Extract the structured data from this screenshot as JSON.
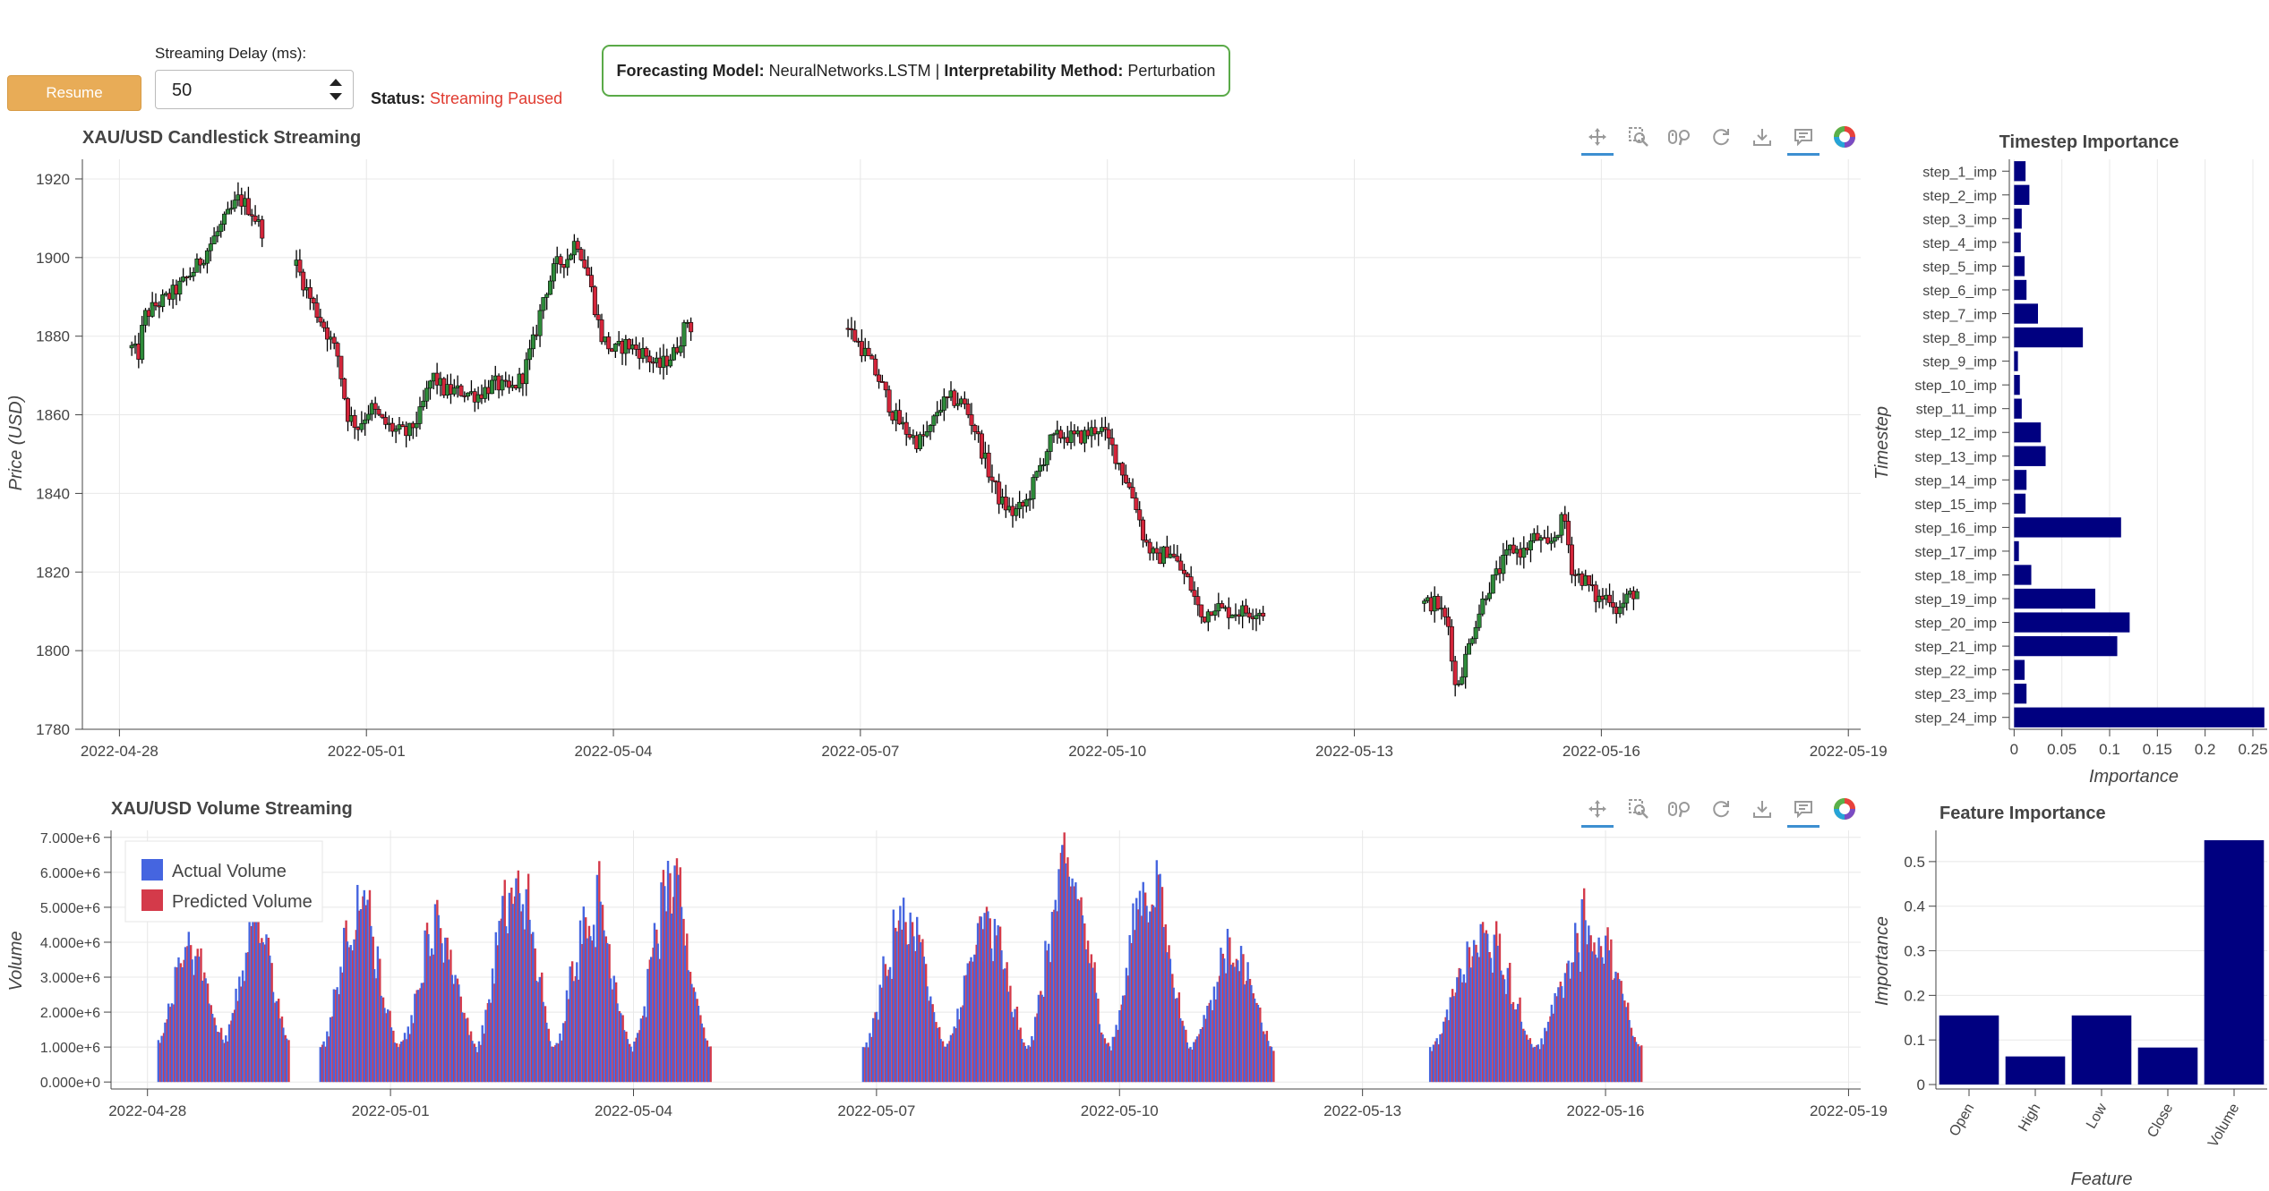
{
  "controls": {
    "resume_label": "Resume",
    "delay_label": "Streaming Delay (ms):",
    "delay_value": "50",
    "status_label": "Status:",
    "status_value": "Streaming Paused",
    "model_label": "Forecasting Model:",
    "model_value": "NeuralNetworks.LSTM",
    "separator": "|",
    "method_label": "Interpretability Method:",
    "method_value": "Perturbation"
  },
  "toolbar": {
    "tools": [
      "pan-icon",
      "box-zoom-icon",
      "wheel-zoom-icon",
      "reset-icon",
      "save-icon",
      "hover-icon",
      "bokeh-logo-icon"
    ]
  },
  "colors": {
    "up": "#2e8b3a",
    "down": "#d3253a",
    "wick": "#000000",
    "actual": "#4565e0",
    "predicted": "#d43a4a",
    "bar": "#000080",
    "status": "#e03a2f",
    "accent": "#e8ac57"
  },
  "chart_data": [
    {
      "type": "candlestick",
      "title": "XAU/USD Candlestick Streaming",
      "ylabel": "Price (USD)",
      "xlabel": "",
      "ylim": [
        1780,
        1925
      ],
      "yticks": [
        "1780",
        "1800",
        "1820",
        "1840",
        "1860",
        "1880",
        "1900",
        "1920"
      ],
      "xlim_days": [
        -0.45,
        21.15
      ],
      "xtick_days": [
        0,
        3,
        6,
        9,
        12,
        15,
        18,
        21
      ],
      "xticks": [
        "2022-04-28",
        "2022-05-01",
        "2022-05-04",
        "2022-05-07",
        "2022-05-10",
        "2022-05-13",
        "2022-05-16",
        "2022-05-19"
      ],
      "segments": [
        {
          "start": 0.15,
          "end": 1.75,
          "points": [
            [
              0,
              1877
            ],
            [
              0.08,
              1875
            ],
            [
              0.15,
              1885
            ],
            [
              0.3,
              1888
            ],
            [
              0.45,
              1890
            ],
            [
              0.6,
              1893
            ],
            [
              0.8,
              1898
            ],
            [
              1.0,
              1905
            ],
            [
              1.15,
              1910
            ],
            [
              1.3,
              1915
            ],
            [
              1.45,
              1912
            ],
            [
              1.55,
              1908
            ],
            [
              1.65,
              1905
            ],
            [
              1.75,
              1896
            ]
          ]
        },
        {
          "start": 2.15,
          "end": 6.95,
          "points": [
            [
              0,
              1898
            ],
            [
              0.2,
              1888
            ],
            [
              0.35,
              1882
            ],
            [
              0.5,
              1875
            ],
            [
              0.62,
              1860
            ],
            [
              0.75,
              1857
            ],
            [
              0.9,
              1862
            ],
            [
              1.05,
              1858
            ],
            [
              1.2,
              1856
            ],
            [
              1.35,
              1855
            ],
            [
              1.5,
              1860
            ],
            [
              1.65,
              1870
            ],
            [
              1.8,
              1866
            ],
            [
              2.0,
              1866
            ],
            [
              2.2,
              1865
            ],
            [
              2.4,
              1868
            ],
            [
              2.6,
              1866
            ],
            [
              2.75,
              1870
            ],
            [
              2.9,
              1880
            ],
            [
              3.0,
              1890
            ],
            [
              3.15,
              1898
            ],
            [
              3.3,
              1900
            ],
            [
              3.4,
              1905
            ],
            [
              3.55,
              1895
            ],
            [
              3.7,
              1880
            ],
            [
              3.85,
              1876
            ],
            [
              4.0,
              1878
            ],
            [
              4.2,
              1876
            ],
            [
              4.4,
              1872
            ],
            [
              4.6,
              1876
            ],
            [
              4.75,
              1884
            ],
            [
              4.8,
              1882
            ]
          ]
        },
        {
          "start": 8.85,
          "end": 13.9,
          "points": [
            [
              0,
              1882
            ],
            [
              0.2,
              1876
            ],
            [
              0.4,
              1868
            ],
            [
              0.55,
              1860
            ],
            [
              0.7,
              1856
            ],
            [
              0.85,
              1853
            ],
            [
              1.0,
              1856
            ],
            [
              1.1,
              1862
            ],
            [
              1.25,
              1864
            ],
            [
              1.4,
              1863
            ],
            [
              1.55,
              1856
            ],
            [
              1.7,
              1846
            ],
            [
              1.85,
              1838
            ],
            [
              2.0,
              1835
            ],
            [
              2.15,
              1837
            ],
            [
              2.3,
              1845
            ],
            [
              2.45,
              1853
            ],
            [
              2.6,
              1855
            ],
            [
              2.75,
              1854
            ],
            [
              2.9,
              1855
            ],
            [
              3.05,
              1857
            ],
            [
              3.2,
              1852
            ],
            [
              3.35,
              1845
            ],
            [
              3.5,
              1837
            ],
            [
              3.6,
              1828
            ],
            [
              3.75,
              1823
            ],
            [
              3.9,
              1826
            ],
            [
              4.0,
              1822
            ],
            [
              4.15,
              1817
            ],
            [
              4.3,
              1808
            ],
            [
              4.45,
              1812
            ],
            [
              4.55,
              1810
            ],
            [
              4.65,
              1810
            ]
          ]
        },
        {
          "start": 15.85,
          "end": 18.45,
          "points": [
            [
              0,
              1812
            ],
            [
              0.15,
              1812
            ],
            [
              0.3,
              1806
            ],
            [
              0.38,
              1790
            ],
            [
              0.5,
              1798
            ],
            [
              0.6,
              1806
            ],
            [
              0.75,
              1815
            ],
            [
              0.9,
              1820
            ],
            [
              1.05,
              1826
            ],
            [
              1.2,
              1825
            ],
            [
              1.35,
              1829
            ],
            [
              1.5,
              1826
            ],
            [
              1.6,
              1830
            ],
            [
              1.7,
              1834
            ],
            [
              1.8,
              1820
            ],
            [
              1.95,
              1818
            ],
            [
              2.1,
              1813
            ],
            [
              2.25,
              1814
            ],
            [
              2.35,
              1810
            ],
            [
              2.45,
              1813
            ],
            [
              2.55,
              1815
            ]
          ]
        }
      ]
    },
    {
      "type": "bar",
      "title": "XAU/USD Volume Streaming",
      "ylabel": "Volume",
      "ylim": [
        -200000,
        7200000
      ],
      "yticks": [
        "0.000e+0",
        "1.000e+6",
        "2.000e+6",
        "3.000e+6",
        "4.000e+6",
        "5.000e+6",
        "6.000e+6",
        "7.000e+6"
      ],
      "ytick_values": [
        0,
        1000000,
        2000000,
        3000000,
        4000000,
        5000000,
        6000000,
        7000000
      ],
      "xlim_days": [
        -0.45,
        21.15
      ],
      "xtick_days": [
        0,
        3,
        6,
        9,
        12,
        15,
        18,
        21
      ],
      "xticks": [
        "2022-04-28",
        "2022-05-01",
        "2022-05-04",
        "2022-05-07",
        "2022-05-10",
        "2022-05-13",
        "2022-05-16",
        "2022-05-19"
      ],
      "series": [
        {
          "name": "Actual Volume",
          "color": "#4565e0"
        },
        {
          "name": "Predicted Volume",
          "color": "#d43a4a"
        }
      ],
      "segments": [
        {
          "start": 0.15,
          "end": 1.75,
          "peaks_m": [
            4.8,
            5.2
          ],
          "base_m": 1.2
        },
        {
          "start": 2.15,
          "end": 6.95,
          "peaks_m": [
            5.8,
            5.2,
            6.7,
            6.2,
            6.4
          ],
          "base_m": 1.0
        },
        {
          "start": 8.85,
          "end": 13.9,
          "peaks_m": [
            5.6,
            5.2,
            7.0,
            6.8,
            4.6
          ],
          "base_m": 1.0
        },
        {
          "start": 15.85,
          "end": 18.45,
          "peaks_m": [
            4.8,
            5.5
          ],
          "base_m": 1.0
        }
      ]
    },
    {
      "type": "hbar",
      "title": "Timestep Importance",
      "xlabel": "Importance",
      "ylabel": "Timestep",
      "xlim": [
        -0.005,
        0.265
      ],
      "xticks": [
        "0",
        "0.05",
        "0.1",
        "0.15",
        "0.2",
        "0.25"
      ],
      "xtick_values": [
        0,
        0.05,
        0.1,
        0.15,
        0.2,
        0.25
      ],
      "categories": [
        "step_1_imp",
        "step_2_imp",
        "step_3_imp",
        "step_4_imp",
        "step_5_imp",
        "step_6_imp",
        "step_7_imp",
        "step_8_imp",
        "step_9_imp",
        "step_10_imp",
        "step_11_imp",
        "step_12_imp",
        "step_13_imp",
        "step_14_imp",
        "step_15_imp",
        "step_16_imp",
        "step_17_imp",
        "step_18_imp",
        "step_19_imp",
        "step_20_imp",
        "step_21_imp",
        "step_22_imp",
        "step_23_imp",
        "step_24_imp"
      ],
      "values": [
        0.012,
        0.016,
        0.008,
        0.007,
        0.011,
        0.013,
        0.025,
        0.072,
        0.004,
        0.006,
        0.008,
        0.028,
        0.033,
        0.013,
        0.012,
        0.112,
        0.005,
        0.018,
        0.085,
        0.121,
        0.108,
        0.011,
        0.013,
        0.262
      ]
    },
    {
      "type": "bar",
      "title": "Feature Importance",
      "xlabel": "Feature",
      "ylabel": "Importance",
      "ylim": [
        -0.01,
        0.57
      ],
      "yticks": [
        "0",
        "0.1",
        "0.2",
        "0.3",
        "0.4",
        "0.5"
      ],
      "ytick_values": [
        0,
        0.1,
        0.2,
        0.3,
        0.4,
        0.5
      ],
      "categories": [
        "Open",
        "High",
        "Low",
        "Close",
        "Volume"
      ],
      "values": [
        0.155,
        0.063,
        0.155,
        0.083,
        0.548
      ]
    }
  ]
}
